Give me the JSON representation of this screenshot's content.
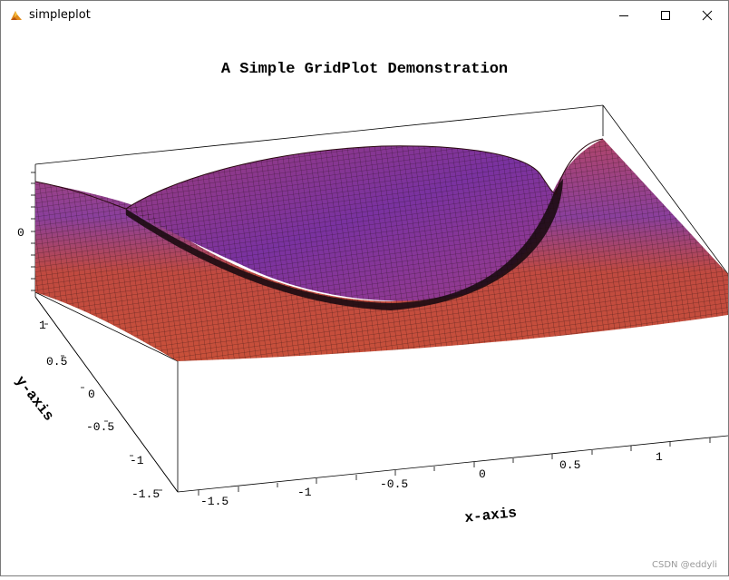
{
  "window": {
    "title": "simpleplot",
    "icon": "matlab-like-plot-icon",
    "controls": [
      "minimize-icon",
      "maximize-icon",
      "close-icon"
    ]
  },
  "chart_data": {
    "type": "surface",
    "title": "A Simple GridPlot Demonstration",
    "xlabel": "x-axis",
    "ylabel": "y-axis",
    "zlabel": "",
    "x_ticks": [
      "-1.5",
      "-1",
      "-0.5",
      "0",
      "0.5",
      "1"
    ],
    "y_ticks": [
      "1",
      "0.5",
      "0",
      "-0.5",
      "-1",
      "-1.5"
    ],
    "z_ticks": [
      "0"
    ],
    "colors": {
      "surface_high": "#c8503a",
      "surface_low": "#7a2f9e",
      "mesh": "#1a0a0a"
    }
  },
  "watermark": "CSDN @eddyli"
}
